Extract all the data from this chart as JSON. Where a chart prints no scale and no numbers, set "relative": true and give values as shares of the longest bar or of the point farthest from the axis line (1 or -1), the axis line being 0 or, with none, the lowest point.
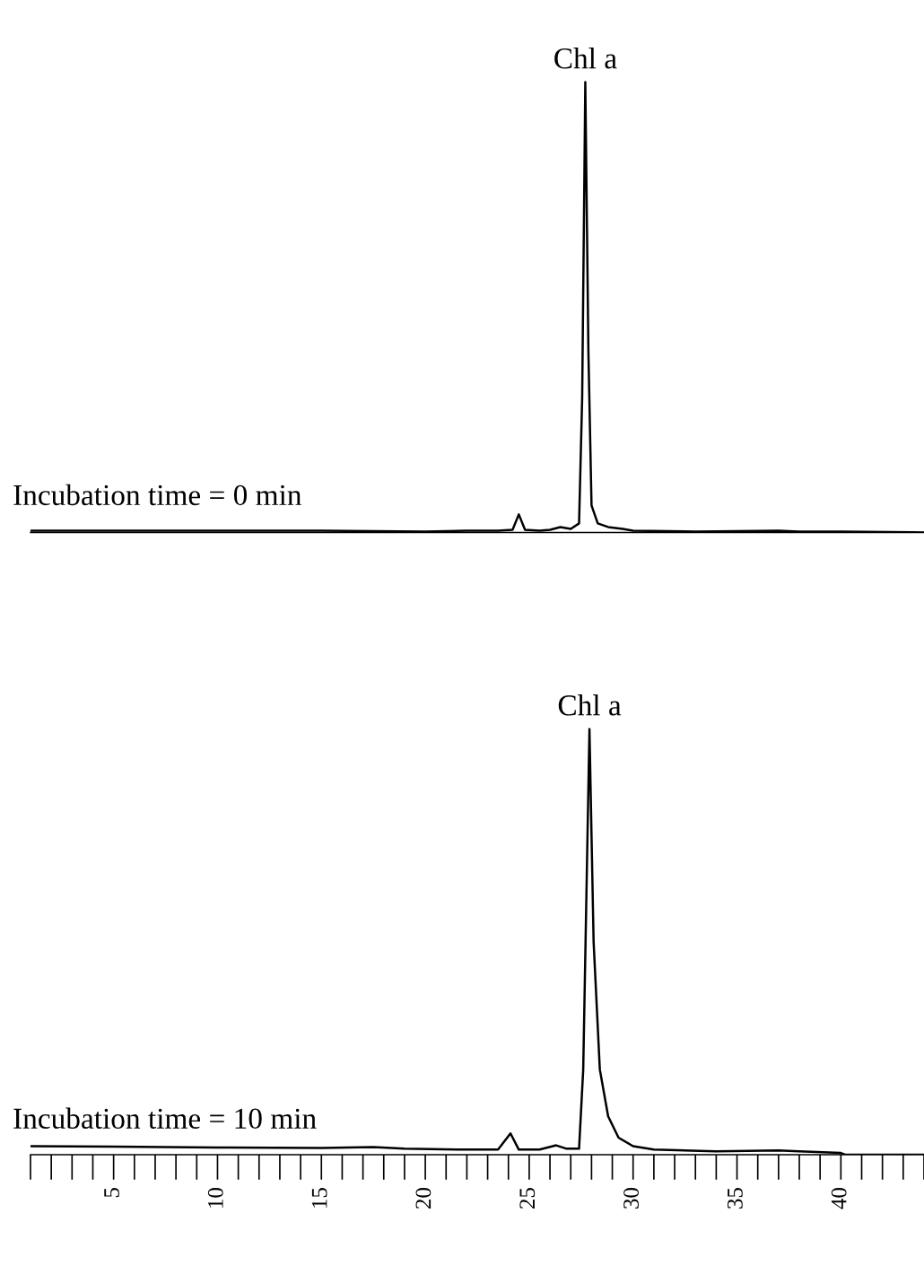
{
  "chart_data": [
    {
      "type": "line",
      "title": "Incubation time = 0 min",
      "relative": true,
      "tick_labels": false,
      "xlim": [
        1,
        44
      ],
      "legend": false,
      "grid": false,
      "x": [
        1,
        5,
        10,
        15,
        20,
        22,
        23.5,
        24.2,
        24.5,
        24.8,
        25.5,
        26,
        26.5,
        27,
        27.4,
        27.55,
        27.7,
        27.85,
        28.0,
        28.3,
        28.8,
        29.5,
        30,
        33,
        37,
        38,
        40,
        44
      ],
      "series": [
        {
          "color": "#000000",
          "values": [
            0.004,
            0.004,
            0.004,
            0.004,
            0.002,
            0.004,
            0.004,
            0.006,
            0.04,
            0.006,
            0.004,
            0.006,
            0.012,
            0.008,
            0.02,
            0.3,
            1,
            0.4,
            0.06,
            0.02,
            0.012,
            0.008,
            0.004,
            0.002,
            0.004,
            0.002,
            0.002,
            0
          ]
        }
      ],
      "annotations": [
        "Chl a"
      ]
    },
    {
      "type": "line",
      "title": "Incubation time = 10 min",
      "relative": true,
      "tick_labels": "x",
      "xlim": [
        1,
        44
      ],
      "legend": false,
      "grid": false,
      "xticks": [
        {
          "value": 1,
          "label": null
        },
        {
          "value": 2,
          "label": null
        },
        {
          "value": 3,
          "label": null
        },
        {
          "value": 4,
          "label": null
        },
        5,
        {
          "value": 6,
          "label": null
        },
        {
          "value": 7,
          "label": null
        },
        {
          "value": 8,
          "label": null
        },
        {
          "value": 9,
          "label": null
        },
        10,
        {
          "value": 11,
          "label": null
        },
        {
          "value": 12,
          "label": null
        },
        {
          "value": 13,
          "label": null
        },
        {
          "value": 14,
          "label": null
        },
        15,
        {
          "value": 16,
          "label": null
        },
        {
          "value": 17,
          "label": null
        },
        {
          "value": 18,
          "label": null
        },
        {
          "value": 19,
          "label": null
        },
        20,
        {
          "value": 21,
          "label": null
        },
        {
          "value": 22,
          "label": null
        },
        {
          "value": 23,
          "label": null
        },
        {
          "value": 24,
          "label": null
        },
        25,
        {
          "value": 26,
          "label": null
        },
        {
          "value": 27,
          "label": null
        },
        {
          "value": 28,
          "label": null
        },
        {
          "value": 29,
          "label": null
        },
        30,
        {
          "value": 31,
          "label": null
        },
        {
          "value": 32,
          "label": null
        },
        {
          "value": 33,
          "label": null
        },
        {
          "value": 34,
          "label": null
        },
        35,
        {
          "value": 36,
          "label": null
        },
        {
          "value": 37,
          "label": null
        },
        {
          "value": 38,
          "label": null
        },
        {
          "value": 39,
          "label": null
        },
        40,
        {
          "value": 41,
          "label": null
        },
        {
          "value": 42,
          "label": null
        },
        {
          "value": 43,
          "label": null
        },
        {
          "value": 44,
          "label": null
        }
      ],
      "x": [
        1,
        5,
        10,
        15,
        17.5,
        19,
        22,
        23.5,
        24.1,
        24.5,
        25.5,
        26.3,
        26.8,
        27.4,
        27.6,
        27.9,
        28.1,
        28.4,
        28.8,
        29.3,
        30,
        31,
        34,
        37,
        38,
        40,
        40.2,
        44
      ],
      "series": [
        {
          "color": "#000000",
          "values": [
            0.02,
            0.019,
            0.017,
            0.016,
            0.018,
            0.014,
            0.012,
            0.012,
            0.05,
            0.012,
            0.012,
            0.022,
            0.014,
            0.014,
            0.2,
            1,
            0.5,
            0.2,
            0.09,
            0.04,
            0.02,
            0.012,
            0.008,
            0.01,
            0.008,
            0.004,
            0,
            0
          ]
        }
      ],
      "annotations": [
        "Chl a"
      ]
    }
  ]
}
